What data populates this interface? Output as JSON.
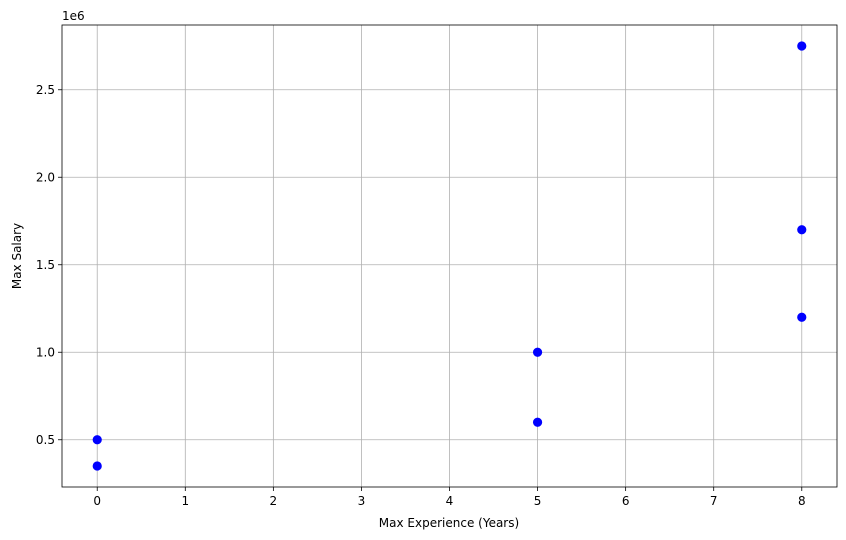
{
  "chart_data": {
    "type": "scatter",
    "xlabel": "Max Experience (Years)",
    "ylabel": "Max Salary",
    "offset_label": "1e6",
    "xlim": [
      -0.4,
      8.4
    ],
    "ylim": [
      230000,
      2870000
    ],
    "x_ticks": [
      0,
      1,
      2,
      3,
      4,
      5,
      6,
      7,
      8
    ],
    "x_tick_labels": [
      "0",
      "1",
      "2",
      "3",
      "4",
      "5",
      "6",
      "7",
      "8"
    ],
    "y_ticks": [
      500000,
      1000000,
      1500000,
      2000000,
      2500000
    ],
    "y_tick_labels": [
      "0.5",
      "1.0",
      "1.5",
      "2.0",
      "2.5"
    ],
    "grid": true,
    "series": [
      {
        "color": "#0000ff",
        "points": [
          {
            "x": 0,
            "y": 350000
          },
          {
            "x": 0,
            "y": 500000
          },
          {
            "x": 5,
            "y": 600000
          },
          {
            "x": 5,
            "y": 1000000
          },
          {
            "x": 8,
            "y": 1200000
          },
          {
            "x": 8,
            "y": 1700000
          },
          {
            "x": 8,
            "y": 2750000
          }
        ]
      }
    ]
  }
}
